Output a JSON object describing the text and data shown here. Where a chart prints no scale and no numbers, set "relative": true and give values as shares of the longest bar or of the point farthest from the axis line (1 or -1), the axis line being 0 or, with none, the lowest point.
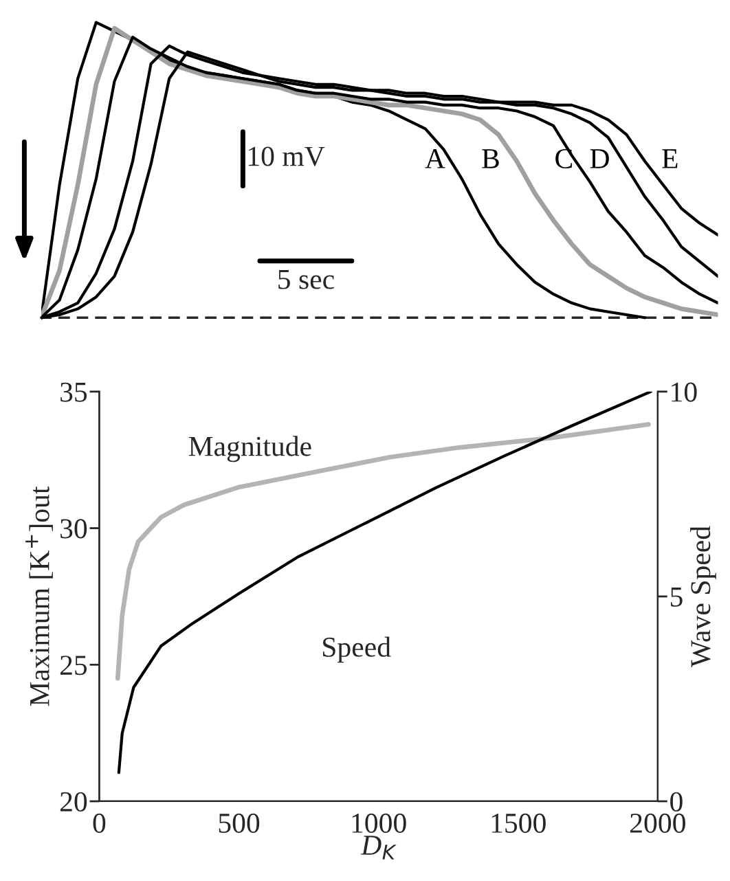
{
  "chart_data": [
    {
      "type": "line",
      "relative": true,
      "grid": false,
      "legend": false,
      "categories": [
        null,
        null,
        null,
        null,
        null,
        null,
        null,
        null,
        null,
        null,
        null,
        null,
        null,
        null,
        null,
        null,
        null,
        null,
        null,
        null,
        null,
        null,
        null,
        null,
        null,
        null,
        null,
        null,
        null,
        null,
        null,
        null,
        null,
        null,
        null,
        null,
        null,
        null
      ],
      "annotations": [
        "10 mV",
        "5 sec"
      ],
      "series": [
        {
          "name": "A",
          "color": "#000000",
          "values": [
            0,
            0.45,
            0.81,
            1.0,
            0.97,
            0.94,
            0.9,
            0.87,
            0.85,
            0.83,
            0.82,
            0.81,
            0.8,
            0.79,
            0.77,
            0.76,
            0.75,
            0.73,
            0.72,
            0.7,
            0.67,
            0.64,
            0.57,
            0.47,
            0.35,
            0.25,
            0.18,
            0.12,
            0.08,
            0.05,
            0.03,
            0.02,
            0.01,
            0,
            null,
            null,
            null,
            null
          ]
        },
        {
          "name": "B",
          "color": "#a0a0a0",
          "values": [
            0,
            0.16,
            0.45,
            0.79,
            0.98,
            0.94,
            0.9,
            0.86,
            0.84,
            0.82,
            0.81,
            0.8,
            0.79,
            0.78,
            0.76,
            0.75,
            0.75,
            0.74,
            0.73,
            0.72,
            0.72,
            0.71,
            0.7,
            0.69,
            0.67,
            0.62,
            0.53,
            0.42,
            0.33,
            0.25,
            0.18,
            0.14,
            0.1,
            0.07,
            0.05,
            0.03,
            0.02,
            0.01
          ]
        },
        {
          "name": "C",
          "color": "#000000",
          "values": [
            0,
            0.06,
            0.23,
            0.47,
            0.8,
            0.95,
            0.91,
            0.88,
            0.85,
            0.83,
            0.82,
            0.81,
            0.8,
            0.79,
            0.77,
            0.76,
            0.76,
            0.75,
            0.74,
            0.74,
            0.73,
            0.73,
            0.72,
            0.72,
            0.71,
            0.71,
            0.7,
            0.68,
            0.65,
            0.55,
            0.46,
            0.36,
            0.29,
            0.21,
            0.17,
            0.12,
            0.08,
            0.05
          ]
        },
        {
          "name": "D",
          "color": "#000000",
          "values": [
            0,
            0.02,
            0.05,
            0.15,
            0.3,
            0.53,
            0.86,
            0.92,
            0.89,
            0.87,
            0.85,
            0.83,
            0.82,
            0.8,
            0.79,
            0.78,
            0.78,
            0.77,
            0.77,
            0.76,
            0.75,
            0.75,
            0.74,
            0.74,
            0.73,
            0.73,
            0.72,
            0.72,
            0.71,
            0.69,
            0.66,
            0.61,
            0.51,
            0.41,
            0.33,
            0.24,
            0.19,
            0.14
          ]
        },
        {
          "name": "E",
          "color": "#000000",
          "values": [
            0,
            0.01,
            0.03,
            0.07,
            0.14,
            0.29,
            0.52,
            0.81,
            0.9,
            0.88,
            0.86,
            0.84,
            0.82,
            0.81,
            0.8,
            0.79,
            0.79,
            0.78,
            0.77,
            0.77,
            0.76,
            0.76,
            0.75,
            0.75,
            0.74,
            0.73,
            0.73,
            0.73,
            0.72,
            0.72,
            0.7,
            0.67,
            0.62,
            0.53,
            0.45,
            0.37,
            0.32,
            0.28
          ]
        }
      ]
    },
    {
      "type": "line",
      "xlabel": "D$_{K}$",
      "ylabel": "Maximum [K$^{+}$]out",
      "y2label": "Wave Speed",
      "xlim": [
        0,
        2000
      ],
      "xticks": [
        0,
        500,
        1000,
        1500,
        2000
      ],
      "ylim": [
        20,
        35
      ],
      "yticks": [
        20,
        25,
        30,
        35
      ],
      "y2lim": [
        0,
        10
      ],
      "y2ticks": [
        0,
        5,
        10
      ],
      "grid": false,
      "legend": false,
      "series": [
        {
          "name": "Magnitude",
          "color": "#b4b4b4",
          "x": [
            66,
            82,
            107,
            139,
            221,
            303,
            500,
            795,
            1041,
            1287,
            1615,
            1967
          ],
          "values": [
            24.5,
            26.8,
            28.5,
            29.5,
            30.4,
            30.85,
            31.5,
            32.1,
            32.6,
            32.95,
            33.3,
            33.8
          ]
        },
        {
          "name": "Speed",
          "color": "#000000",
          "axis": "y2",
          "x": [
            70,
            82,
            123,
            221,
            336,
            500,
            713,
            959,
            1205,
            1451,
            1697,
            1975
          ],
          "values": [
            0.7,
            1.66,
            2.78,
            3.79,
            4.35,
            5.07,
            5.97,
            6.81,
            7.65,
            8.43,
            9.18,
            10.0
          ]
        }
      ]
    }
  ]
}
